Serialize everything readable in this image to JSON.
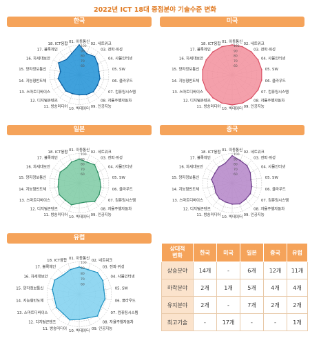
{
  "page_title": "2022년 ICT 18대 중점분야 기술수준 변화",
  "chart_data": [
    {
      "type": "radar",
      "title": "한국",
      "rlim": [
        0,
        100
      ],
      "ticks": [
        60,
        70,
        80,
        90,
        100
      ],
      "fill": "#1f90d6",
      "stroke": "#0a5fa0",
      "categories": [
        "01. 이동통신",
        "02. 네트워크",
        "03. 전파·위성",
        "04. 사물인터넷",
        "05. SW",
        "06. 클라우드",
        "07. 컴퓨팅시스템",
        "08. 자율주행자동차",
        "09. 인공지능",
        "10. 빅데이터",
        "11. 방송미디어",
        "12. 디지털콘텐츠",
        "13. 스마트디바이스",
        "14. 지능형반도체",
        "15. 양자정보통신",
        "16. 차세대보안",
        "17. 블록체인",
        "18. ICT융합"
      ],
      "values": [
        100,
        85,
        88,
        83,
        80,
        82,
        82,
        84,
        82,
        80,
        80,
        82,
        80,
        83,
        78,
        88,
        80,
        85
      ]
    },
    {
      "type": "radar",
      "title": "미국",
      "rlim": [
        0,
        100
      ],
      "ticks": [
        60,
        70,
        80,
        90,
        100
      ],
      "fill": "#f28f9c",
      "stroke": "#d94f63",
      "categories": [
        "01. 이동통신",
        "02. 네트워크",
        "03. 전파·위성",
        "04. 사물인터넷",
        "05. SW",
        "06. 클라우드",
        "07. 컴퓨팅시스템",
        "08. 자율주행자동차",
        "09. 인공지능",
        "10. 빅데이터",
        "11. 방송미디어",
        "12. 디지털콘텐츠",
        "13. 스마트디바이스",
        "14. 지능형반도체",
        "15. 양자정보통신",
        "16. 차세대보안",
        "17. 블록체인",
        "18. ICT융합"
      ],
      "values": [
        100,
        100,
        100,
        100,
        100,
        100,
        100,
        100,
        100,
        100,
        100,
        100,
        100,
        100,
        100,
        100,
        100,
        100
      ]
    },
    {
      "type": "radar",
      "title": "일본",
      "rlim": [
        0,
        100
      ],
      "ticks": [
        60,
        70,
        80,
        90,
        100
      ],
      "fill": "#7dcaa3",
      "stroke": "#2e8f63",
      "categories": [
        "01. 이동통신",
        "02. 네트워크",
        "03. 전파·위성",
        "04. 사물인터넷",
        "05. SW",
        "06. 클라우드",
        "07. 컴퓨팅시스템",
        "08. 자율주행자동차",
        "09. 인공지능",
        "10. 빅데이터",
        "11. 방송미디어",
        "12. 디지털콘텐츠",
        "13. 스마트디바이스",
        "14. 지능형반도체",
        "15. 양자정보통신",
        "16. 차세대보안",
        "17. 블록체인",
        "18. ICT융합"
      ],
      "values": [
        88,
        85,
        88,
        83,
        82,
        84,
        86,
        88,
        80,
        80,
        86,
        84,
        86,
        83,
        82,
        84,
        80,
        85
      ]
    },
    {
      "type": "radar",
      "title": "중국",
      "rlim": [
        0,
        100
      ],
      "ticks": [
        60,
        70,
        80,
        90,
        100
      ],
      "fill": "#b485c8",
      "stroke": "#6e3d8c",
      "categories": [
        "01. 이동통신",
        "02. 네트워크",
        "03. 전파·위성",
        "04. 사물인터넷",
        "05. SW",
        "06. 클라우드",
        "07. 컴퓨팅시스템",
        "08. 자율주행자동차",
        "09. 인공지능",
        "10. 빅데이터",
        "11. 방송미디어",
        "12. 디지털콘텐츠",
        "13. 스마트디바이스",
        "14. 지능형반도체",
        "15. 양자정보통신",
        "16. 차세대보안",
        "17. 블록체인",
        "18. ICT융합"
      ],
      "values": [
        95,
        88,
        86,
        82,
        78,
        80,
        82,
        82,
        84,
        82,
        80,
        80,
        78,
        76,
        82,
        80,
        82,
        82
      ]
    },
    {
      "type": "radar",
      "title": "유럽",
      "rlim": [
        0,
        100
      ],
      "ticks": [
        60,
        70,
        80,
        90,
        100
      ],
      "fill": "#7fd0ee",
      "stroke": "#1b8fc0",
      "categories": [
        "01. 이동통신",
        "02. 네트워크",
        "03. 전파·위성",
        "04. 사물인터넷",
        "05. SW",
        "06. 클라우드",
        "07. 컴퓨팅시스템",
        "08. 자율주행자동차",
        "09. 인공지능",
        "10. 빅데이터",
        "11. 방송미디어",
        "12. 디지털콘텐츠",
        "13. 스마트디바이스",
        "14. 지능형반도체",
        "15. 양자정보통신",
        "16. 차세대보안",
        "17. 블록체인",
        "18. ICT융합"
      ],
      "values": [
        90,
        88,
        92,
        90,
        86,
        88,
        86,
        92,
        86,
        86,
        90,
        86,
        88,
        86,
        90,
        92,
        86,
        88
      ]
    },
    {
      "type": "table",
      "columns": [
        "상대적\n변화",
        "한국",
        "미국",
        "일본",
        "중국",
        "유럽"
      ],
      "rows": [
        [
          "상승분야",
          "14개",
          "-",
          "6개",
          "12개",
          "11개"
        ],
        [
          "하락분야",
          "2개",
          "1개",
          "5개",
          "4개",
          "4개"
        ],
        [
          "유지분야",
          "2개",
          "-",
          "7개",
          "2개",
          "2개"
        ],
        [
          "최고기술",
          "-",
          "17개",
          "-",
          "-",
          "1개"
        ]
      ]
    }
  ]
}
